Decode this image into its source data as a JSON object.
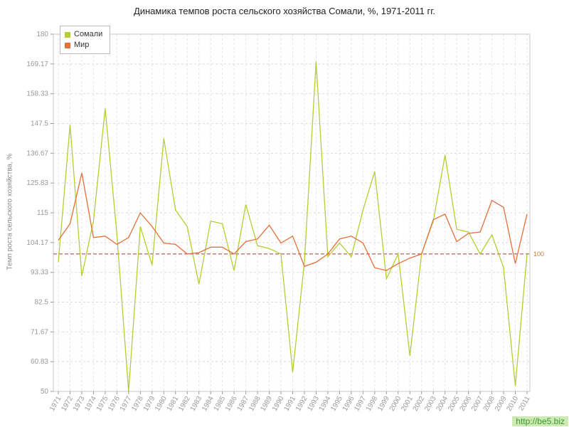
{
  "title": "Динамика темпов роста сельского хозяйства Сомали, %, 1971-2011 гг.",
  "ylabel": "Темп роста сельского хозяйства, %",
  "watermark": "http://be5.biz",
  "reference_line": {
    "value": 100,
    "label": "100",
    "line_color": "#9e3b3b",
    "label_color": "#c97a3a"
  },
  "chart_data": {
    "type": "line",
    "title": "Динамика темпов роста сельского хозяйства Сомали, %, 1971-2011 гг.",
    "xlabel": "",
    "ylabel": "Темп роста сельского хозяйства, %",
    "ylim": [
      50,
      180
    ],
    "yticks": [
      50,
      60.83,
      71.67,
      82.5,
      93.33,
      104.17,
      115,
      125.83,
      136.67,
      147.5,
      158.33,
      169.17,
      180
    ],
    "grid": true,
    "legend_position": "top-left",
    "x": [
      1971,
      1972,
      1973,
      1974,
      1975,
      1976,
      1977,
      1978,
      1979,
      1980,
      1981,
      1982,
      1983,
      1984,
      1985,
      1986,
      1987,
      1988,
      1989,
      1990,
      1991,
      1992,
      1993,
      1994,
      1995,
      1996,
      1997,
      1998,
      1999,
      2000,
      2001,
      2002,
      2003,
      2004,
      2005,
      2006,
      2007,
      2008,
      2009,
      2010,
      2011
    ],
    "series": [
      {
        "key": "somalia",
        "name": "Сомали",
        "color": "#b8cc33",
        "values": [
          97,
          147,
          92,
          112,
          153,
          107,
          50,
          110,
          96,
          142,
          116,
          110,
          89,
          112,
          111,
          94,
          118,
          103,
          102,
          100,
          57,
          97,
          170,
          99,
          104,
          99,
          116,
          130,
          91,
          100,
          63,
          100,
          112,
          136,
          109,
          108,
          100,
          107,
          95,
          52,
          100
        ]
      },
      {
        "key": "world",
        "name": "Мир",
        "color": "#e2703a",
        "values": [
          105,
          111,
          129.5,
          106,
          106.5,
          103.5,
          106,
          115,
          110,
          104,
          103.5,
          100,
          100.5,
          102.5,
          102.5,
          100,
          104.5,
          105.5,
          110.5,
          104,
          106.5,
          95.5,
          97,
          100,
          105.5,
          106.5,
          104,
          95,
          94,
          96.5,
          98.5,
          100,
          112.5,
          114.5,
          104.5,
          107.5,
          108,
          119.5,
          117,
          96.5,
          114.5
        ]
      }
    ]
  }
}
